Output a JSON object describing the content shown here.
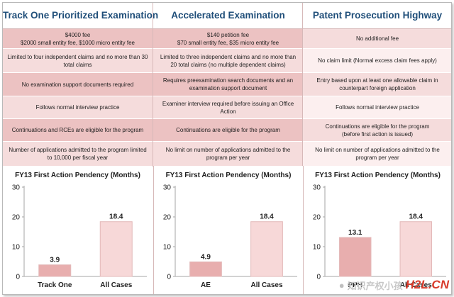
{
  "columns": [
    {
      "header": "Track One Prioritized Examination",
      "rows": [
        "$4000 fee\n$2000 small entity fee, $1000 micro entity fee",
        "Limited to four independent claims and no more than 30 total claims",
        "No examination support documents required",
        "Follows normal interview practice",
        "Continuations and RCEs are eligible for the program",
        "Number of applications admitted to the program limited to 10,000 per fiscal year"
      ]
    },
    {
      "header": "Accelerated Examination",
      "rows": [
        "$140 petition fee\n$70 small entity fee, $35 micro entity fee",
        "Limited to three independent claims and no more than 20 total claims (no multiple dependent claims)",
        "Requires preexamination search documents and an examination support document",
        "Examiner interview required before issuing an Office Action",
        "Continuations are eligible for the program",
        "No limit on number of applications admitted to the program per year"
      ]
    },
    {
      "header": "Patent Prosecution Highway",
      "rows": [
        "No additional fee",
        "No claim limit (Normal excess claim fees apply)",
        "Entry based upon at least one allowable claim in counterpart foreign application",
        "Follows normal interview practice",
        "Continuations are eligible for the program\n(before first action is issued)",
        "No limit on number of applications admitted to the program per year"
      ]
    }
  ],
  "colors": {
    "header_text": "#1f4e79",
    "bar_dark": "#e8aeae",
    "bar_light": "#f7d8d8"
  },
  "chart_data": [
    {
      "type": "bar",
      "title": "FY13 First Action Pendency (Months)",
      "categories": [
        "Track One",
        "All Cases"
      ],
      "values": [
        3.9,
        18.4
      ],
      "labels": [
        "3.9",
        "18.4"
      ],
      "ylim": [
        0,
        30
      ],
      "yticks": [
        0,
        10,
        20,
        30
      ],
      "xlabel": "",
      "ylabel": ""
    },
    {
      "type": "bar",
      "title": "FY13 First Action Pendency (Months)",
      "categories": [
        "AE",
        "All Cases"
      ],
      "values": [
        4.9,
        18.4
      ],
      "labels": [
        "4.9",
        "18.4"
      ],
      "ylim": [
        0,
        30
      ],
      "yticks": [
        0,
        10,
        20,
        30
      ],
      "xlabel": "",
      "ylabel": ""
    },
    {
      "type": "bar",
      "title": "FY13 First Action Pendency (Months)",
      "categories": [
        "PPH",
        "All Cases"
      ],
      "values": [
        13.1,
        18.4
      ],
      "labels": [
        "13.1",
        "18.4"
      ],
      "ylim": [
        0,
        30
      ],
      "yticks": [
        0,
        10,
        20,
        30
      ],
      "xlabel": "",
      "ylabel": ""
    }
  ],
  "watermark": {
    "cn_text": "知识产权小孩",
    "brand": "H2L.CN"
  }
}
